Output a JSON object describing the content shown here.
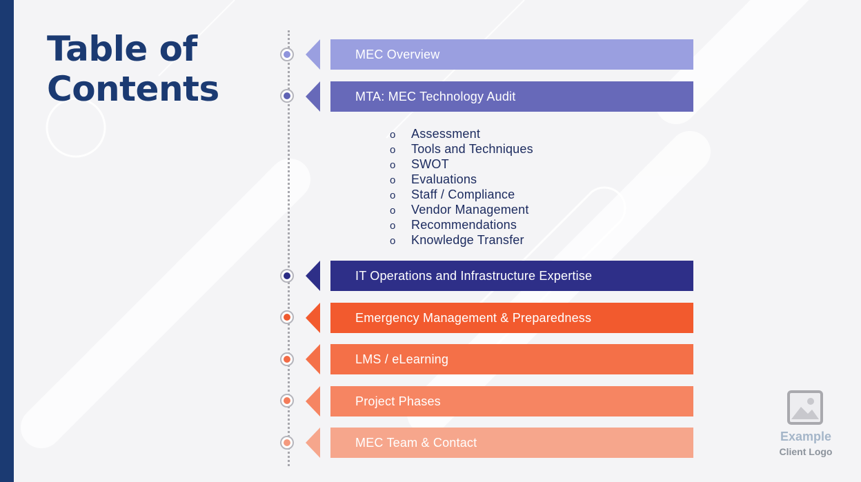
{
  "title": {
    "line1": "Table of",
    "line2": "Contents"
  },
  "sections": [
    {
      "label": "MEC Overview",
      "band_color": "#9a9fe0",
      "arrow_color": "#9a9fe0",
      "dot_color": "#8f94dc"
    },
    {
      "label": "MTA: MEC Technology Audit",
      "band_color": "#6769b9",
      "arrow_color": "#6769b9",
      "dot_color": "#5f62b4"
    },
    {
      "label": "IT Operations and Infrastructure Expertise",
      "band_color": "#2e2f88",
      "arrow_color": "#2e2f88",
      "dot_color": "#2a2b84"
    },
    {
      "label": "Emergency Management & Preparedness",
      "band_color": "#f25a2e",
      "arrow_color": "#f25a2e",
      "dot_color": "#ef5a2f"
    },
    {
      "label": "LMS / eLearning",
      "band_color": "#f47048",
      "arrow_color": "#f47048",
      "dot_color": "#f26a45"
    },
    {
      "label": "Project Phases",
      "band_color": "#f68562",
      "arrow_color": "#f68562",
      "dot_color": "#f47c5a"
    },
    {
      "label": "MEC Team & Contact",
      "band_color": "#f6a68c",
      "arrow_color": "#f6a68c",
      "dot_color": "#f49a7f"
    }
  ],
  "subitems": {
    "bullet": "o",
    "items": [
      "Assessment",
      "Tools and Techniques",
      "SWOT",
      "Evaluations",
      "Staff / Compliance",
      "Vendor Management",
      "Recommendations",
      "Knowledge Transfer"
    ]
  },
  "logo": {
    "icon": "image-placeholder-icon",
    "line1": "Example",
    "line2": "Client Logo"
  },
  "colors": {
    "brand_navy": "#1b3a72",
    "background": "#f4f4f6",
    "timeline": "#a7a7ad"
  }
}
